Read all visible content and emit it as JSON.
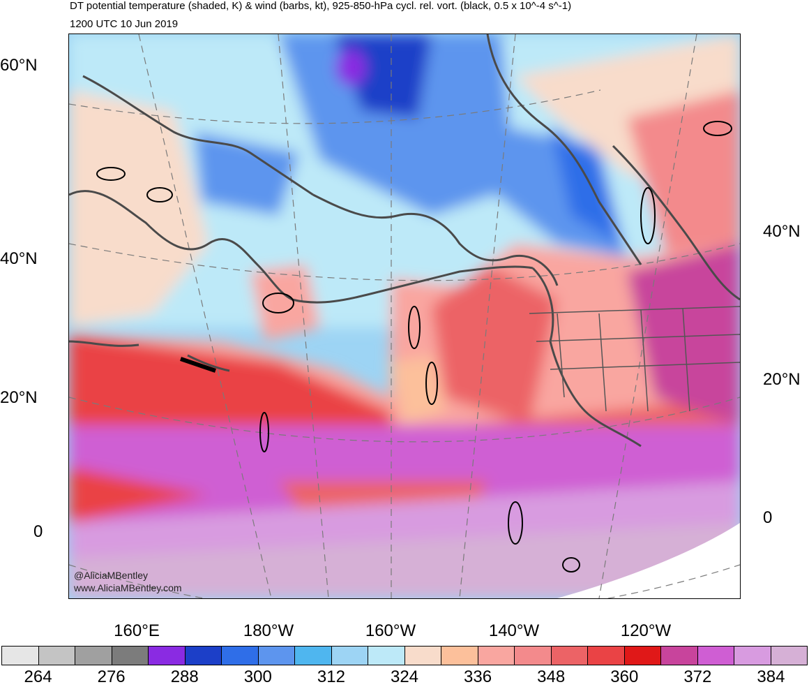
{
  "header": {
    "title": "DT potential temperature (shaded, K) & wind (barbs, kt), 925-850-hPa cycl. rel. vort. (black, 0.5 x 10^-4 s^-1)",
    "valid_time": "1200 UTC 10 Jun 2019"
  },
  "axes": {
    "left_lat_labels": [
      "60°N",
      "40°N",
      "20°N",
      "0"
    ],
    "right_lat_labels": [
      "40°N",
      "20°N",
      "0"
    ],
    "lon_labels": [
      "160°E",
      "180°W",
      "160°W",
      "140°W",
      "120°W"
    ]
  },
  "credits": {
    "handle": "@AliciaMBentley",
    "website": "www.AliciaMBentley.com"
  },
  "colorbar": {
    "colors": [
      "#e6e6e6",
      "#c4c4c4",
      "#a0a0a0",
      "#7c7c7c",
      "#8a2be2",
      "#1c3fc8",
      "#2f6ee8",
      "#5d95ee",
      "#4fb6ef",
      "#9dd4f4",
      "#bde9f8",
      "#f8dccb",
      "#fcc09b",
      "#f9a6a0",
      "#f38a8c",
      "#ec6366",
      "#ea4345",
      "#e01818",
      "#c8449c",
      "#cf5ed3",
      "#d89be0",
      "#d6b0d6"
    ],
    "tick_labels": [
      "264",
      "276",
      "288",
      "300",
      "312",
      "324",
      "336",
      "348",
      "360",
      "372",
      "384"
    ]
  }
}
